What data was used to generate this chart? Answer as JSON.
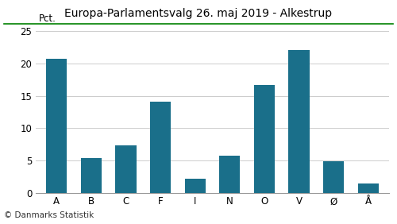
{
  "title": "Europa-Parlamentsvalg 26. maj 2019 - Alkestrup",
  "categories": [
    "A",
    "B",
    "C",
    "F",
    "I",
    "N",
    "O",
    "V",
    "Ø",
    "Å"
  ],
  "values": [
    20.8,
    5.3,
    7.3,
    14.1,
    2.2,
    5.7,
    16.7,
    22.1,
    4.9,
    1.4
  ],
  "bar_color": "#1a6f8a",
  "ylabel": "Pct.",
  "ylim": [
    0,
    25
  ],
  "yticks": [
    0,
    5,
    10,
    15,
    20,
    25
  ],
  "footer": "© Danmarks Statistik",
  "title_fontsize": 10,
  "tick_fontsize": 8.5,
  "footer_fontsize": 7.5,
  "background_color": "#ffffff",
  "title_line_color": "#008000",
  "grid_color": "#cccccc"
}
